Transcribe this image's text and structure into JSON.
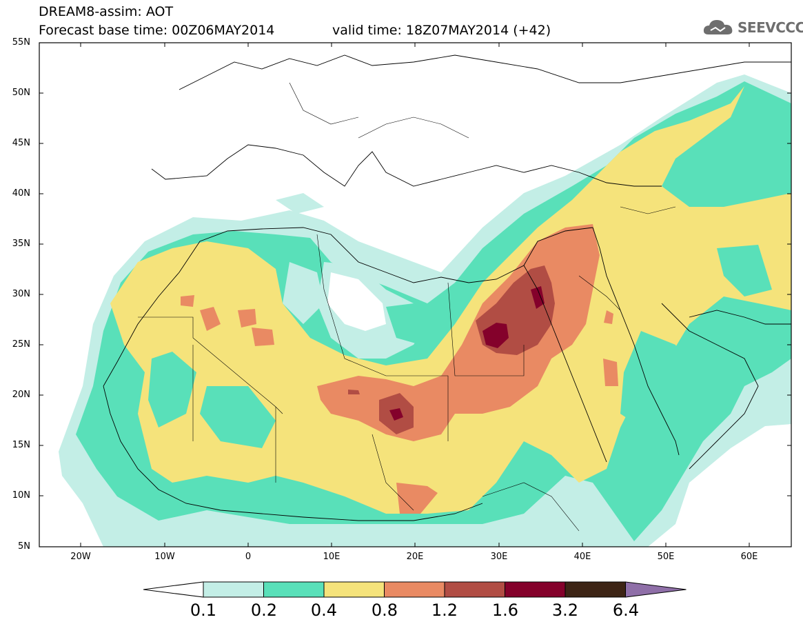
{
  "header": {
    "title": "DREAM8-assim: AOT",
    "base_time": "Forecast base time: 00Z06MAY2014",
    "valid_time": "valid time: 18Z07MAY2014 (+42)",
    "logo_text": "SEEVCCC"
  },
  "map": {
    "lon_range": [
      -25,
      65
    ],
    "lat_range": [
      5,
      55
    ],
    "lat_labels": [
      "55N",
      "50N",
      "45N",
      "40N",
      "35N",
      "30N",
      "25N",
      "20N",
      "15N",
      "10N",
      "5N"
    ],
    "lon_labels": [
      "20W",
      "10W",
      "0",
      "10E",
      "20E",
      "30E",
      "40E",
      "50E",
      "60E"
    ]
  },
  "legend": {
    "labels": [
      "0.1",
      "0.2",
      "0.4",
      "0.8",
      "1.2",
      "1.6",
      "3.2",
      "6.4"
    ],
    "colors": [
      "#ffffff",
      "#c3eee6",
      "#59e0b9",
      "#f5e37b",
      "#e98a63",
      "#b14d44",
      "#84012b",
      "#3d2415",
      "#8f6fa8"
    ]
  }
}
